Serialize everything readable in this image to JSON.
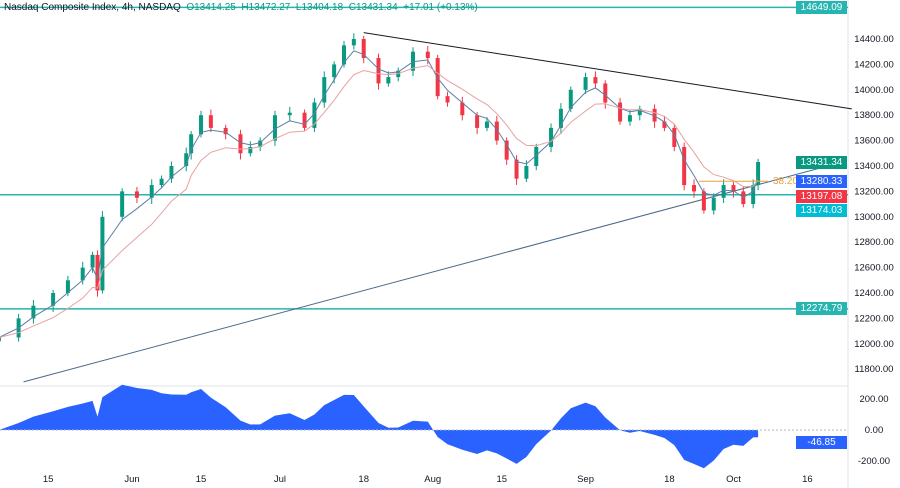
{
  "header": {
    "symbol": "Nasdaq Composite Index, 4h, NASDAQ",
    "open": "O13414.25",
    "high": "H13472.27",
    "low": "L13404.18",
    "close": "C13431.34",
    "change": "+17.01 (+0.13%)"
  },
  "chart_data": {
    "type": "candlestick",
    "title": "Nasdaq Composite Index, 4h, NASDAQ",
    "y_ticks": [
      11800,
      12000,
      12200,
      12400,
      12600,
      12800,
      13000,
      13200,
      13400,
      13600,
      13800,
      14000,
      14200,
      14400
    ],
    "y_tick_labels": [
      "11800.00",
      "12000.00",
      "12200.00",
      "12400.00",
      "12600.00",
      "12800.00",
      "13000.00",
      "13200.00",
      "13400.00",
      "13600.00",
      "13800.00",
      "14000.00",
      "14200.00",
      "14400.00"
    ],
    "x_ticks": [
      {
        "date": "2023-05-15",
        "label": "15"
      },
      {
        "date": "2023-06-01",
        "label": "Jun"
      },
      {
        "date": "2023-06-15",
        "label": "15"
      },
      {
        "date": "2023-07-01",
        "label": "Jul"
      },
      {
        "date": "2023-07-18",
        "label": "18"
      },
      {
        "date": "2023-08-01",
        "label": "Aug"
      },
      {
        "date": "2023-08-15",
        "label": "15"
      },
      {
        "date": "2023-09-01",
        "label": "Sep"
      },
      {
        "date": "2023-09-18",
        "label": "18"
      },
      {
        "date": "2023-10-01",
        "label": "Oct"
      },
      {
        "date": "2023-10-16",
        "label": "16"
      }
    ],
    "closes": [
      [
        "2023-05-05",
        12050
      ],
      [
        "2023-05-09",
        12200
      ],
      [
        "2023-05-12",
        12300
      ],
      [
        "2023-05-16",
        12400
      ],
      [
        "2023-05-19",
        12500
      ],
      [
        "2023-05-22",
        12600
      ],
      [
        "2023-05-24",
        12700
      ],
      [
        "2023-05-25",
        12420
      ],
      [
        "2023-05-26",
        13000
      ],
      [
        "2023-05-30",
        13200
      ],
      [
        "2023-06-02",
        13150
      ],
      [
        "2023-06-05",
        13250
      ],
      [
        "2023-06-07",
        13300
      ],
      [
        "2023-06-09",
        13400
      ],
      [
        "2023-06-12",
        13500
      ],
      [
        "2023-06-13",
        13650
      ],
      [
        "2023-06-15",
        13800
      ],
      [
        "2023-06-17",
        13700
      ],
      [
        "2023-06-20",
        13650
      ],
      [
        "2023-06-23",
        13500
      ],
      [
        "2023-06-25",
        13550
      ],
      [
        "2023-06-27",
        13600
      ],
      [
        "2023-06-30",
        13800
      ],
      [
        "2023-07-03",
        13820
      ],
      [
        "2023-07-06",
        13700
      ],
      [
        "2023-07-08",
        13900
      ],
      [
        "2023-07-10",
        14100
      ],
      [
        "2023-07-12",
        14200
      ],
      [
        "2023-07-14",
        14350
      ],
      [
        "2023-07-16",
        14400
      ],
      [
        "2023-07-18",
        14250
      ],
      [
        "2023-07-21",
        14050
      ],
      [
        "2023-07-23",
        14100
      ],
      [
        "2023-07-25",
        14150
      ],
      [
        "2023-07-28",
        14300
      ],
      [
        "2023-07-31",
        14250
      ],
      [
        "2023-08-02",
        13950
      ],
      [
        "2023-08-04",
        13900
      ],
      [
        "2023-08-07",
        13800
      ],
      [
        "2023-08-10",
        13700
      ],
      [
        "2023-08-12",
        13750
      ],
      [
        "2023-08-14",
        13600
      ],
      [
        "2023-08-16",
        13450
      ],
      [
        "2023-08-18",
        13300
      ],
      [
        "2023-08-20",
        13400
      ],
      [
        "2023-08-22",
        13550
      ],
      [
        "2023-08-25",
        13700
      ],
      [
        "2023-08-27",
        13850
      ],
      [
        "2023-08-29",
        14000
      ],
      [
        "2023-09-01",
        14100
      ],
      [
        "2023-09-03",
        14050
      ],
      [
        "2023-09-05",
        13900
      ],
      [
        "2023-09-08",
        13750
      ],
      [
        "2023-09-10",
        13800
      ],
      [
        "2023-09-12",
        13850
      ],
      [
        "2023-09-15",
        13750
      ],
      [
        "2023-09-17",
        13700
      ],
      [
        "2023-09-19",
        13550
      ],
      [
        "2023-09-21",
        13250
      ],
      [
        "2023-09-23",
        13200
      ],
      [
        "2023-09-25",
        13050
      ],
      [
        "2023-09-27",
        13150
      ],
      [
        "2023-09-29",
        13250
      ],
      [
        "2023-10-01",
        13200
      ],
      [
        "2023-10-03",
        13100
      ],
      [
        "2023-10-05",
        13250
      ],
      [
        "2023-10-06",
        13431.34
      ]
    ],
    "levels": [
      {
        "price": 14649.09,
        "label": "14649.09"
      },
      {
        "price": 13174.03,
        "label": "13174.03"
      },
      {
        "price": 12274.79,
        "label": "12274.79"
      }
    ],
    "trendlines": [
      {
        "from": [
          "2023-07-18",
          14450
        ],
        "to": [
          "2023-10-25",
          13850
        ],
        "color": "#131722"
      },
      {
        "from": [
          "2023-05-10",
          11700
        ],
        "to": [
          "2023-10-22",
          13420
        ],
        "color": "#4a6a8a"
      }
    ],
    "fib": {
      "price": 13280,
      "label": "38.20%",
      "from": "2023-09-24",
      "to": "2023-10-08",
      "color": "#e6a23c"
    },
    "price_tags": [
      {
        "label": "13431.34",
        "color": "#089981"
      },
      {
        "label": "13280.33",
        "color": "#2962ff"
      },
      {
        "label": "13197.08",
        "color": "#f23645"
      },
      {
        "label": "13174.03",
        "color": "#00bcd4"
      }
    ],
    "oscillator": {
      "y_ticks": [
        200,
        0,
        -200
      ],
      "y_tick_labels": [
        "200.00",
        "0.00",
        "-200.00"
      ],
      "last_label": "-46.85",
      "last": -46.85,
      "color": "#2962ff"
    },
    "colors": {
      "up": "#089981",
      "down": "#f23645",
      "ma_fast": "#5b7fa6",
      "ma_slow": "#e8a0a0",
      "level": "#26b5b0"
    }
  }
}
